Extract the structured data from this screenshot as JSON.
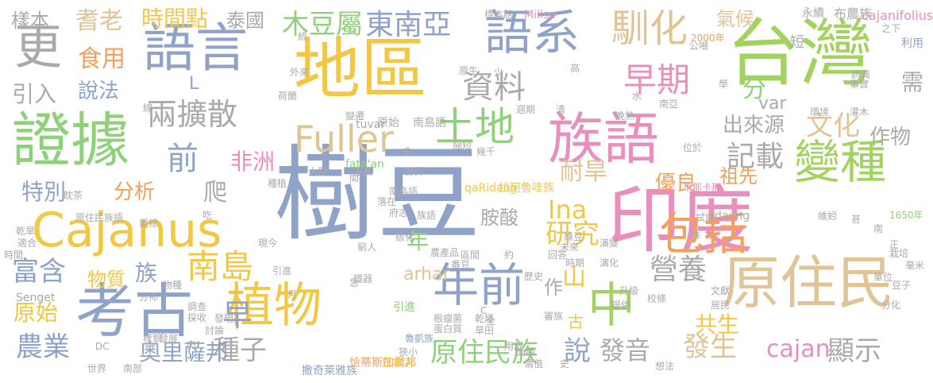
{
  "word_cloud": {
    "words": [
      {
        "text": "樹豆",
        "color": "#8fa3c8"
      },
      {
        "text": "台灣",
        "color": "#a3d35f"
      },
      {
        "text": "地區",
        "color": "#f2c744"
      },
      {
        "text": "印度",
        "color": "#e88fbd"
      },
      {
        "text": "證據",
        "color": "#8fd07a"
      },
      {
        "text": "族語",
        "color": "#e88fbd"
      },
      {
        "text": "語言",
        "color": "#8fa3c8"
      },
      {
        "text": "語系",
        "color": "#8fa3c8"
      },
      {
        "text": "更",
        "color": "#aaaaaa"
      },
      {
        "text": "原住民",
        "color": "#e0c496"
      },
      {
        "text": "考古",
        "color": "#8fa3c8"
      },
      {
        "text": "Cajanus",
        "color": "#f2c744"
      },
      {
        "text": "植物",
        "color": "#f2c744"
      },
      {
        "text": "變種",
        "color": "#a3d35f"
      },
      {
        "text": "中",
        "color": "#a3d35f"
      },
      {
        "text": "年前",
        "color": "#8fa3c8"
      },
      {
        "text": "包括",
        "color": "#f4a05c"
      },
      {
        "text": "土地",
        "color": "#8fd07a"
      },
      {
        "text": "Fuller",
        "color": "#e0c496"
      },
      {
        "text": "馴化",
        "color": "#e0c496"
      },
      {
        "text": "早期",
        "color": "#e88fbd"
      },
      {
        "text": "資料",
        "color": "#aaaaaa"
      },
      {
        "text": "南島",
        "color": "#f2c744"
      },
      {
        "text": "兩擴散",
        "color": "#aaaaaa"
      },
      {
        "text": "東南亞",
        "color": "#8fa3c8"
      },
      {
        "text": "木豆屬",
        "color": "#8fd07a"
      },
      {
        "text": "前",
        "color": "#8fa3c8"
      },
      {
        "text": "早",
        "color": "#8fa3c8"
      },
      {
        "text": "農業",
        "color": "#8fa3c8"
      },
      {
        "text": "富含",
        "color": "#8fa3c8"
      },
      {
        "text": "營養",
        "color": "#aaaaaa"
      },
      {
        "text": "記載",
        "color": "#aaaaaa"
      },
      {
        "text": "文化",
        "color": "#e0c496"
      },
      {
        "text": "發生",
        "color": "#e0c496"
      },
      {
        "text": "cajan",
        "color": "#e88fbd"
      },
      {
        "text": "顯示",
        "color": "#aaaaaa"
      },
      {
        "text": "原住民族",
        "color": "#8fd07a"
      },
      {
        "text": "種子",
        "color": "#aaaaaa"
      },
      {
        "text": "研究",
        "color": "#f2c744"
      },
      {
        "text": "Ina",
        "color": "#f2c744"
      },
      {
        "text": "耆老",
        "color": "#e0c496"
      },
      {
        "text": "食用",
        "color": "#f4a05c"
      },
      {
        "text": "時間點",
        "color": "#f2c744"
      },
      {
        "text": "泰國",
        "color": "#aaaaaa"
      },
      {
        "text": "胺酸",
        "color": "#aaaaaa"
      },
      {
        "text": "原始",
        "color": "#f2c744"
      },
      {
        "text": "分析",
        "color": "#f4a05c"
      },
      {
        "text": "特別",
        "color": "#8fa3c8"
      },
      {
        "text": "非洲",
        "color": "#e88fbd"
      },
      {
        "text": "說法",
        "color": "#8fa3c8"
      },
      {
        "text": "引入",
        "color": "#aaaaaa"
      },
      {
        "text": "樣本",
        "color": "#aaaaaa"
      },
      {
        "text": "出來源",
        "color": "#aaaaaa"
      },
      {
        "text": "作物",
        "color": "#aaaaaa"
      },
      {
        "text": "耐旱",
        "color": "#e0c496"
      },
      {
        "text": "優良",
        "color": "#f4a05c"
      },
      {
        "text": "氣候",
        "color": "#e0c496"
      },
      {
        "text": "祖先",
        "color": "#f4a05c"
      },
      {
        "text": "共生",
        "color": "#f2c744"
      },
      {
        "text": "發音",
        "color": "#aaaaaa"
      },
      {
        "text": "說",
        "color": "#8fa3c8"
      },
      {
        "text": "奧里薩邦",
        "color": "#8fa3c8"
      },
      {
        "text": "物質",
        "color": "#f2c744"
      },
      {
        "text": "族",
        "color": "#8fa3c8"
      },
      {
        "text": "年",
        "color": "#8fd07a"
      },
      {
        "text": "作",
        "color": "#aaaaaa"
      },
      {
        "text": "山",
        "color": "#f2c744"
      },
      {
        "text": "爬",
        "color": "#aaaaaa"
      },
      {
        "text": "分",
        "color": "#8fd07a"
      },
      {
        "text": "var",
        "color": "#aaaaaa"
      },
      {
        "text": "短",
        "color": "#aaaaaa"
      },
      {
        "text": "需",
        "color": "#aaaaaa"
      },
      {
        "text": "arhar",
        "color": "#e0c496"
      },
      {
        "text": "L",
        "color": "#8fa3c8"
      },
      {
        "text": "古",
        "color": "#f2c744"
      },
      {
        "text": "布農族",
        "color": "#aaaaaa"
      },
      {
        "text": "cajanifolius",
        "color": "#e88fbd"
      },
      {
        "text": "永續",
        "color": "#aaaaaa"
      },
      {
        "text": "Millsp",
        "color": "#e88fbd"
      },
      {
        "text": "標本館",
        "color": "#aaaaaa"
      },
      {
        "text": "利用",
        "color": "#8fa3c8"
      },
      {
        "text": "南島語",
        "color": "#aaaaaa"
      },
      {
        "text": "原始",
        "color": "#aaaaaa"
      },
      {
        "text": "fata'an",
        "color": "#8fd07a"
      },
      {
        "text": "qaRidang",
        "color": "#f2c744"
      },
      {
        "text": "拉阿魯哇族",
        "color": "#f2c744"
      },
      {
        "text": "tuvar",
        "color": "#aaaaaa"
      },
      {
        "text": "卡那卡那",
        "color": "#e88fbd"
      },
      {
        "text": "daung",
        "color": "#aaaaaa"
      },
      {
        "text": "1650年",
        "color": "#8fd07a"
      },
      {
        "text": "2000年",
        "color": "#f4a05c"
      },
      {
        "text": "Senget",
        "color": "#aaaaaa"
      },
      {
        "text": "撒奇萊雅族",
        "color": "#8fa3c8"
      },
      {
        "text": "恰蒂斯加爾邦",
        "color": "#f4a05c"
      },
      {
        "text": "日本人",
        "color": "#f2c744"
      },
      {
        "text": "引進",
        "color": "#8fd07a"
      },
      {
        "text": "魯凱族",
        "color": "#8fa3c8"
      },
      {
        "text": "蛋白質",
        "color": "#aaaaaa"
      },
      {
        "text": "根瘤菌",
        "color": "#aaaaaa"
      },
      {
        "text": "乾燥",
        "color": "#aaaaaa"
      },
      {
        "text": "區間",
        "color": "#aaaaaa"
      },
      {
        "text": "農產品",
        "color": "#aaaaaa"
      },
      {
        "text": "番豆",
        "color": "#aaaaaa"
      },
      {
        "text": "歷史",
        "color": "#aaaaaa"
      },
      {
        "text": "時期",
        "color": "#aaaaaa"
      },
      {
        "text": "未來",
        "color": "#aaaaaa"
      },
      {
        "text": "演化",
        "color": "#aaaaaa"
      },
      {
        "text": "綠豆",
        "color": "#aaaaaa"
      },
      {
        "text": "演變",
        "color": "#aaaaaa"
      },
      {
        "text": "栽培",
        "color": "#aaaaaa"
      },
      {
        "text": "毫米",
        "color": "#aaaaaa"
      },
      {
        "text": "單位",
        "color": "#aaaaaa"
      },
      {
        "text": "分化",
        "color": "#aaaaaa"
      },
      {
        "text": "居民",
        "color": "#aaaaaa"
      },
      {
        "text": "文獻",
        "color": "#aaaaaa"
      },
      {
        "text": "提供",
        "color": "#aaaaaa"
      },
      {
        "text": "升級",
        "color": "#aaaaaa"
      },
      {
        "text": "校條",
        "color": "#aaaaaa"
      },
      {
        "text": "吃",
        "color": "#aaaaaa"
      },
      {
        "text": "現今",
        "color": "#aaaaaa"
      },
      {
        "text": "重修",
        "color": "#aaaaaa"
      },
      {
        "text": "原住民族語",
        "color": "#aaaaaa"
      },
      {
        "text": "眈茶",
        "color": "#aaaaaa"
      },
      {
        "text": "種植",
        "color": "#aaaaaa"
      },
      {
        "text": "大型",
        "color": "#aaaaaa"
      },
      {
        "text": "生長",
        "color": "#aaaaaa"
      },
      {
        "text": "乾旱",
        "color": "#aaaaaa"
      },
      {
        "text": "適合",
        "color": "#aaaaaa"
      },
      {
        "text": "分佈",
        "color": "#aaaaaa"
      },
      {
        "text": "物種",
        "color": "#aaaaaa"
      },
      {
        "text": "調查",
        "color": "#aaaaaa"
      },
      {
        "text": "探收",
        "color": "#aaaaaa"
      },
      {
        "text": "發現",
        "color": "#aaaaaa"
      },
      {
        "text": "討論",
        "color": "#aaaaaa"
      },
      {
        "text": "發展",
        "color": "#aaaaaa"
      },
      {
        "text": "樣貌",
        "color": "#aaaaaa"
      },
      {
        "text": "肉",
        "color": "#aaaaaa"
      },
      {
        "text": "DC",
        "color": "#aaaaaa"
      },
      {
        "text": "世界",
        "color": "#aaaaaa"
      },
      {
        "text": "南部",
        "color": "#aaaaaa"
      },
      {
        "text": "狹小",
        "color": "#aaaaaa"
      },
      {
        "text": "用詞",
        "color": "#aaaaaa"
      },
      {
        "text": "面積",
        "color": "#aaaaaa"
      },
      {
        "text": "價值",
        "color": "#aaaaaa"
      },
      {
        "text": "史",
        "color": "#aaaaaa"
      },
      {
        "text": "清",
        "color": "#aaaaaa"
      },
      {
        "text": "週期",
        "color": "#aaaaaa"
      },
      {
        "text": "變遷",
        "color": "#aaaaaa"
      },
      {
        "text": "線",
        "color": "#aaaaaa"
      },
      {
        "text": "外來",
        "color": "#aaaaaa"
      },
      {
        "text": "荷蘭",
        "color": "#aaaaaa"
      },
      {
        "text": "統",
        "color": "#aaaaaa"
      },
      {
        "text": "少",
        "color": "#aaaaaa"
      },
      {
        "text": "原生",
        "color": "#aaaaaa"
      },
      {
        "text": "高",
        "color": "#aaaaaa"
      },
      {
        "text": "晚熟",
        "color": "#aaaaaa"
      },
      {
        "text": "水",
        "color": "#aaaaaa"
      },
      {
        "text": "南亞",
        "color": "#aaaaaa"
      },
      {
        "text": "環境",
        "color": "#aaaaaa"
      },
      {
        "text": "灌木",
        "color": "#aaaaaa"
      },
      {
        "text": "公噸",
        "color": "#aaaaaa"
      },
      {
        "text": "之下",
        "color": "#aaaaaa"
      },
      {
        "text": "詞典",
        "color": "#aaaaaa"
      },
      {
        "text": "事實",
        "color": "#aaaaaa"
      },
      {
        "text": "學",
        "color": "#aaaaaa"
      },
      {
        "text": "位於",
        "color": "#aaaaaa"
      },
      {
        "text": "成",
        "color": "#aaaaaa"
      },
      {
        "text": "幾千",
        "color": "#aaaaaa"
      },
      {
        "text": "縮短",
        "color": "#aaaaaa"
      },
      {
        "text": "野外",
        "color": "#aaaaaa"
      },
      {
        "text": "間",
        "color": "#aaaaaa"
      },
      {
        "text": "落在",
        "color": "#aaaaaa"
      },
      {
        "text": "南島語",
        "color": "#aaaaaa"
      },
      {
        "text": "府志",
        "color": "#aaaaaa"
      },
      {
        "text": "族語",
        "color": "#aaaaaa"
      },
      {
        "text": "碳化",
        "color": "#aaaaaa"
      },
      {
        "text": "窮人",
        "color": "#aaaaaa"
      },
      {
        "text": "鐵器",
        "color": "#aaaaaa"
      },
      {
        "text": "急",
        "color": "#aaaaaa"
      },
      {
        "text": "引進",
        "color": "#aaaaaa"
      },
      {
        "text": "月",
        "color": "#aaaaaa"
      },
      {
        "text": "時間",
        "color": "#aaaaaa"
      },
      {
        "text": "C",
        "color": "#aaaaaa"
      },
      {
        "text": "全",
        "color": "#aaaaaa"
      },
      {
        "text": "旱田",
        "color": "#aaaaaa"
      },
      {
        "text": "回答",
        "color": "#aaaaaa"
      },
      {
        "text": "約",
        "color": "#aaaaaa"
      },
      {
        "text": "甚",
        "color": "#aaaaaa"
      },
      {
        "text": "南",
        "color": "#aaaaaa"
      },
      {
        "text": "正",
        "color": "#aaaaaa"
      },
      {
        "text": "豆子",
        "color": "#aaaaaa"
      },
      {
        "text": "試試",
        "color": "#aaaaaa"
      },
      {
        "text": "株",
        "color": "#aaaaaa"
      },
      {
        "text": "審族",
        "color": "#aaaaaa"
      },
      {
        "text": "維蚓",
        "color": "#aaaaaa"
      },
      {
        "text": "想法",
        "color": "#aaaaaa"
      }
    ]
  }
}
